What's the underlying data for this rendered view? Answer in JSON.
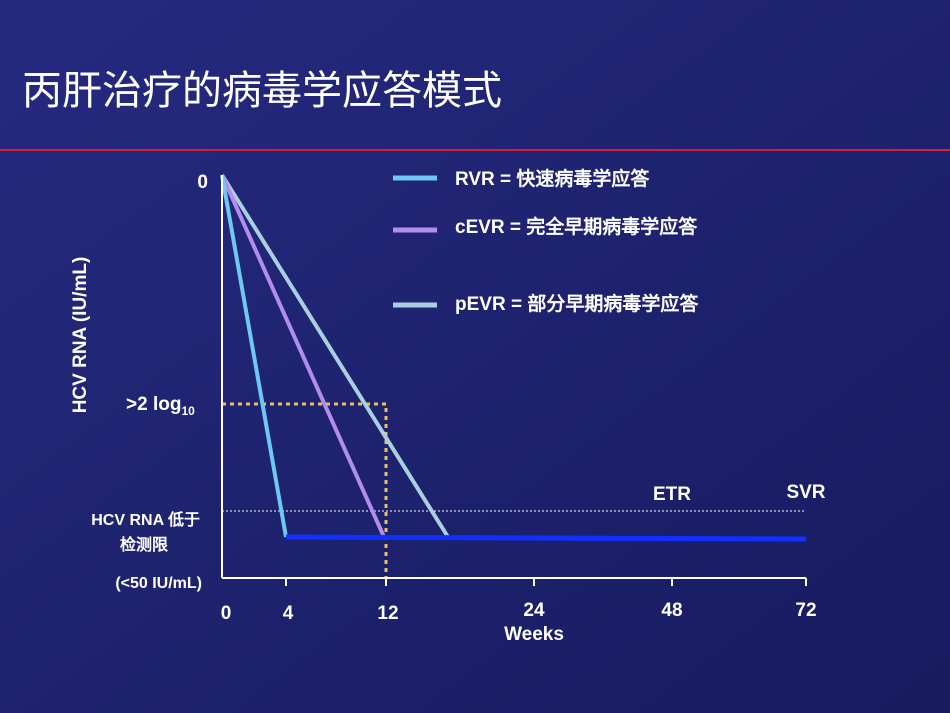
{
  "title": "丙肝治疗的病毒学应答模式",
  "legend": [
    "RVR = 快速病毒学应答",
    "cEVR = 完全早期病毒学应答",
    "pEVR = 部分早期病毒学应答"
  ],
  "y_axis": {
    "title": "HCV RNA (IU/mL)",
    "top_label": "0",
    "log_label": ">2 log",
    "log_subscript": "10",
    "limit_label_1": "HCV RNA  低于",
    "limit_label_2": "检测限",
    "limit_label_3": "(<50 IU/mL)"
  },
  "x_axis": {
    "title": "Weeks",
    "ticks": [
      "0",
      "4",
      "12",
      "24",
      "48",
      "72"
    ]
  },
  "annotations": [
    "ETR",
    "SVR"
  ]
}
